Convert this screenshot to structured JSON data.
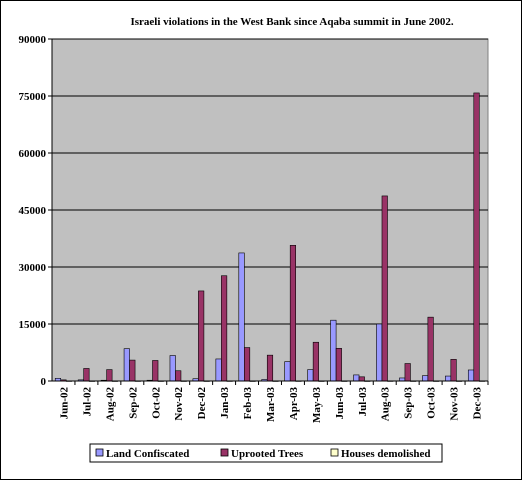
{
  "chart_data": {
    "type": "bar",
    "title": "Israeli violations in the West Bank since Aqaba summit in June 2002.",
    "xlabel": "",
    "ylabel": "",
    "ylim": [
      0,
      90000
    ],
    "yticks": [
      0,
      15000,
      30000,
      45000,
      60000,
      75000,
      90000
    ],
    "grid": true,
    "legend_position": "bottom",
    "plot_background": "#c0c0c0",
    "categories": [
      "Jun-02",
      "Jul-02",
      "Aug-02",
      "Sep-02",
      "Oct-02",
      "Nov-02",
      "Dec-02",
      "Jan-03",
      "Feb-03",
      "Mar-03",
      "Apr-03",
      "May-03",
      "Jun-03",
      "Jul-03",
      "Aug-03",
      "Sep-03",
      "Oct-03",
      "Nov-03",
      "Dec-03"
    ],
    "series": [
      {
        "name": "Land Confiscated",
        "color": "#9999ff",
        "values": [
          700,
          300,
          200,
          8500,
          200,
          6700,
          600,
          5800,
          33700,
          400,
          5100,
          3000,
          16000,
          1600,
          15000,
          800,
          1400,
          1300,
          2900
        ]
      },
      {
        "name": "Uprooted Trees",
        "color": "#993366",
        "values": [
          300,
          3300,
          3000,
          5500,
          5400,
          2700,
          23700,
          27700,
          8800,
          6800,
          35700,
          10200,
          8600,
          1100,
          48700,
          4600,
          16800,
          5700,
          75800
        ]
      },
      {
        "name": "Houses demolished",
        "color": "#ffffcc",
        "values": [
          20,
          10,
          10,
          20,
          10,
          10,
          10,
          20,
          10,
          10,
          20,
          10,
          10,
          10,
          20,
          10,
          10,
          10,
          20
        ]
      }
    ]
  }
}
